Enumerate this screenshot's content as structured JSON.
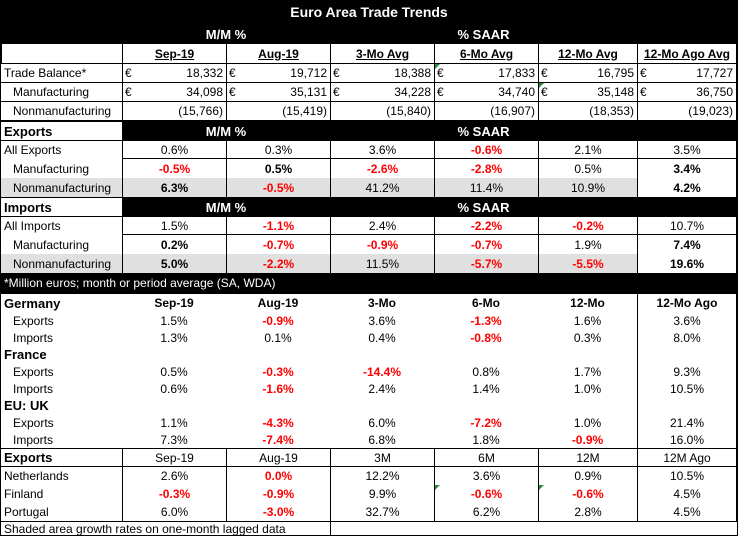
{
  "title": "Euro Area Trade Trends",
  "hdr": {
    "mm": "M/M %",
    "saar": "% SAAR"
  },
  "cols": [
    "Sep-19",
    "Aug-19",
    "3-Mo Avg",
    "6-Mo Avg",
    "12-Mo Avg",
    "12-Mo Ago Avg"
  ],
  "currency": "€",
  "balance": [
    {
      "label": "Trade Balance*",
      "v": [
        "18,332",
        "19,712",
        "18,388",
        "17,833",
        "16,795",
        "17,727"
      ]
    },
    {
      "label": "Manufacturing",
      "v": [
        "34,098",
        "35,131",
        "34,228",
        "34,740",
        "35,148",
        "36,750"
      ]
    },
    {
      "label": "Nonmanufacturing",
      "v": [
        "(15,766)",
        "(15,419)",
        "(15,840)",
        "(16,907)",
        "(18,353)",
        "(19,023)"
      ]
    }
  ],
  "exports_title": "Exports",
  "exports": [
    {
      "label": "All Exports",
      "v": [
        "0.6%",
        "0.3%",
        "3.6%",
        "-0.6%",
        "2.1%",
        "3.5%"
      ]
    },
    {
      "label": "Manufacturing",
      "v": [
        "-0.5%",
        "0.5%",
        "-2.6%",
        "-2.8%",
        "0.5%",
        "3.4%"
      ]
    },
    {
      "label": "Nonmanufacturing",
      "v": [
        "6.3%",
        "-0.5%",
        "41.2%",
        "11.4%",
        "10.9%",
        "4.2%"
      ]
    }
  ],
  "imports_title": "Imports",
  "imports": [
    {
      "label": "All Imports",
      "v": [
        "1.5%",
        "-1.1%",
        "2.4%",
        "-2.2%",
        "-0.2%",
        "10.7%"
      ]
    },
    {
      "label": "Manufacturing",
      "v": [
        "0.2%",
        "-0.7%",
        "-0.9%",
        "-0.7%",
        "1.9%",
        "7.4%"
      ]
    },
    {
      "label": "Nonmanufacturing",
      "v": [
        "5.0%",
        "-2.2%",
        "11.5%",
        "-5.7%",
        "-5.5%",
        "19.6%"
      ]
    }
  ],
  "note": "*Million euros; month or period average (SA, WDA)",
  "country_cols": [
    "Sep-19",
    "Aug-19",
    "3-Mo",
    "6-Mo",
    "12-Mo",
    "12-Mo Ago"
  ],
  "countries": [
    {
      "name": "Germany",
      "rows": [
        {
          "label": "Exports",
          "v": [
            "1.5%",
            "-0.9%",
            "3.6%",
            "-1.3%",
            "1.6%",
            "3.6%"
          ]
        },
        {
          "label": "Imports",
          "v": [
            "1.3%",
            "0.1%",
            "0.4%",
            "-0.8%",
            "0.3%",
            "8.0%"
          ]
        }
      ]
    },
    {
      "name": "France",
      "rows": [
        {
          "label": "Exports",
          "v": [
            "0.5%",
            "-0.3%",
            "-14.4%",
            "0.8%",
            "1.7%",
            "9.3%"
          ]
        },
        {
          "label": "Imports",
          "v": [
            "0.6%",
            "-1.6%",
            "2.4%",
            "1.4%",
            "1.0%",
            "10.5%"
          ]
        }
      ]
    },
    {
      "name": "EU: UK",
      "rows": [
        {
          "label": "Exports",
          "v": [
            "1.1%",
            "-4.3%",
            "6.0%",
            "-7.2%",
            "1.0%",
            "21.4%"
          ]
        },
        {
          "label": "Imports",
          "v": [
            "7.3%",
            "-7.4%",
            "6.8%",
            "1.8%",
            "-0.9%",
            "16.0%"
          ]
        }
      ]
    }
  ],
  "exp2_title": "Exports",
  "exp2_cols": [
    "Sep-19",
    "Aug-19",
    "3M",
    "6M",
    "12M",
    "12M Ago"
  ],
  "exp2": [
    {
      "label": "Netherlands",
      "v": [
        "2.6%",
        "0.0%",
        "12.2%",
        "3.6%",
        "0.9%",
        "10.5%"
      ]
    },
    {
      "label": "Finland",
      "v": [
        "-0.3%",
        "-0.9%",
        "9.9%",
        "-0.6%",
        "-0.6%",
        "4.5%"
      ]
    },
    {
      "label": "Portugal",
      "v": [
        "6.0%",
        "-3.0%",
        "32.7%",
        "6.2%",
        "2.8%",
        "4.5%"
      ]
    }
  ],
  "footer": "Shaded area growth rates on one-month lagged data"
}
